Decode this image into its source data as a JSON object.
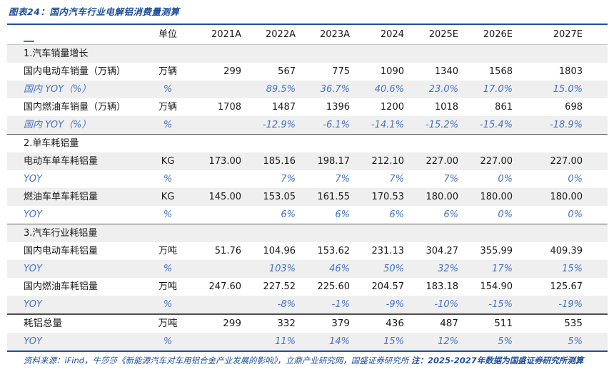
{
  "title": "图表24：国内汽车行业电解铝消费量测算",
  "colors": {
    "accent_blue": "#1f4e9c",
    "yoy_blue": "#4472c4",
    "stripe_gray": "#efefef"
  },
  "table": {
    "columns": [
      "",
      "单位",
      "2021A",
      "2022A",
      "2023A",
      "2024",
      "2025E",
      "2026E",
      "2027E"
    ],
    "rows": [
      {
        "type": "section",
        "label": "1.汽车销量增长",
        "unit": "",
        "values": [
          "",
          "",
          "",
          "",
          "",
          "",
          ""
        ]
      },
      {
        "type": "data",
        "label": "国内电动车销量（万辆）",
        "unit": "万辆",
        "values": [
          "299",
          "567",
          "775",
          "1090",
          "1340",
          "1568",
          "1803"
        ]
      },
      {
        "type": "yoy",
        "label": "国内 YOY（%）",
        "unit": "%",
        "values": [
          "",
          "89.5%",
          "36.7%",
          "40.6%",
          "23.0%",
          "17.0%",
          "15.0%"
        ]
      },
      {
        "type": "data",
        "label": "国内燃油车销量（万辆）",
        "unit": "万辆",
        "values": [
          "1708",
          "1487",
          "1396",
          "1200",
          "1018",
          "861",
          "698"
        ]
      },
      {
        "type": "yoy",
        "label": "国内 YOY（%）",
        "unit": "%",
        "values": [
          "",
          "-12.9%",
          "-6.1%",
          "-14.1%",
          "-15.2%",
          "-15.4%",
          "-18.9%"
        ]
      },
      {
        "type": "section",
        "label": "2.单车耗铝量",
        "unit": "",
        "values": [
          "",
          "",
          "",
          "",
          "",
          "",
          ""
        ]
      },
      {
        "type": "data",
        "label": "电动车单车耗铝量",
        "unit": "KG",
        "values": [
          "173.00",
          "185.16",
          "198.17",
          "212.10",
          "227.00",
          "227.00",
          "227.00"
        ]
      },
      {
        "type": "yoy",
        "label": "YOY",
        "unit": "%",
        "values": [
          "",
          "7%",
          "7%",
          "7%",
          "7%",
          "0%",
          "0%"
        ]
      },
      {
        "type": "data",
        "label": "燃油车单车耗铝量",
        "unit": "KG",
        "values": [
          "145.00",
          "153.05",
          "161.55",
          "170.53",
          "180.00",
          "180.00",
          "180.00"
        ]
      },
      {
        "type": "yoy",
        "label": "YOY",
        "unit": "%",
        "values": [
          "",
          "6%",
          "6%",
          "6%",
          "6%",
          "0%",
          "0%"
        ]
      },
      {
        "type": "section",
        "label": "3.汽车行业耗铝量",
        "unit": "",
        "values": [
          "",
          "",
          "",
          "",
          "",
          "",
          ""
        ]
      },
      {
        "type": "data",
        "label": "国内电动车耗铝量",
        "unit": "万吨",
        "values": [
          "51.76",
          "104.96",
          "153.62",
          "231.13",
          "304.27",
          "355.99",
          "409.39"
        ]
      },
      {
        "type": "yoy",
        "label": "YOY",
        "unit": "%",
        "values": [
          "",
          "103%",
          "46%",
          "50%",
          "32%",
          "17%",
          "15%"
        ]
      },
      {
        "type": "data",
        "label": "国内燃油车耗铝量",
        "unit": "万吨",
        "values": [
          "247.60",
          "227.52",
          "225.60",
          "204.57",
          "183.18",
          "154.90",
          "125.67"
        ]
      },
      {
        "type": "yoy",
        "label": "YOY",
        "unit": "%",
        "values": [
          "",
          "-8%",
          "-1%",
          "-9%",
          "-10%",
          "-15%",
          "-19%"
        ]
      },
      {
        "type": "total",
        "label": "耗铝总量",
        "unit": "万吨",
        "values": [
          "299",
          "332",
          "379",
          "436",
          "487",
          "511",
          "535"
        ]
      },
      {
        "type": "yoy",
        "label": "YOY",
        "unit": "%",
        "values": [
          "",
          "11%",
          "14%",
          "15%",
          "12%",
          "5%",
          "5%"
        ]
      }
    ]
  },
  "footer": {
    "source": "资料来源：iFind，牛莎莎《新能源汽车对车用铝合金产业发展的影响》，立鼎产业研究网，国盛证券研究所",
    "note": "注：2025-2027年数据为国盛证券研究所测算"
  }
}
